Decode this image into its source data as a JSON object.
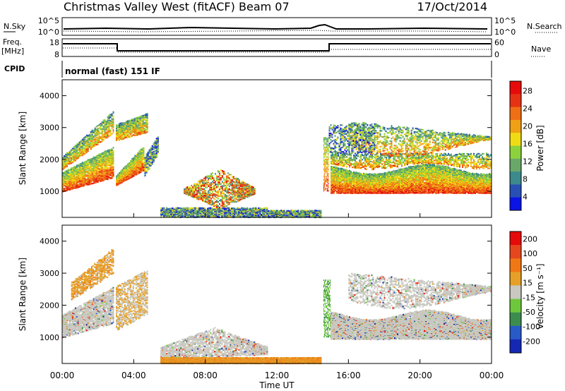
{
  "header": {
    "site_title": "Christmas Valley West (fitACF)",
    "beam": "Beam 07",
    "date": "17/Oct/2014"
  },
  "summary": {
    "nsky_label": "N.Sky",
    "nsky_ticks": [
      "10^5",
      "10^0"
    ],
    "nsearch_label": "N.Search",
    "nsearch_ticks": [
      "10^5",
      "10^0"
    ],
    "freq_label_1": "Freq.",
    "freq_label_2": "[MHz]",
    "freq_ticks": [
      "18",
      "8"
    ],
    "nave_label": "Nave",
    "nave_ticks": [
      "60",
      "0"
    ],
    "cpid_label": "CPID",
    "cpid_value": "normal (fast) 151 IF"
  },
  "chart_data": [
    {
      "type": "heatmap",
      "panel": "power",
      "ylabel": "Slant Range [km]",
      "xlabel": "",
      "yticks": [
        "4000",
        "3000",
        "2000",
        "1000"
      ],
      "ylim": [
        180,
        4500
      ],
      "colorbar_label": "Power [dB]",
      "colorbar_ticks": [
        "28",
        "24",
        "20",
        "16",
        "12",
        "8",
        "4"
      ],
      "colors": [
        "#0a14e6",
        "#2850b4",
        "#3c8a8c",
        "#6aa86a",
        "#8cd23c",
        "#f0dc14",
        "#f0a014",
        "#f06e14",
        "#e63214",
        "#e60a0a"
      ]
    },
    {
      "type": "heatmap",
      "panel": "velocity",
      "ylabel": "Slant Range [km]",
      "xlabel": "Time UT",
      "yticks": [
        "4000",
        "3000",
        "2000",
        "1000"
      ],
      "ylim": [
        180,
        4500
      ],
      "colorbar_label": "Velocity [m s⁻¹]",
      "colorbar_ticks": [
        "200",
        "100",
        "50",
        "15",
        "-15",
        "-50",
        "-100",
        "-200"
      ],
      "colors": [
        "#1428b4",
        "#285ac8",
        "#3c8c50",
        "#6ec83c",
        "#c8c8c0",
        "#e6a028",
        "#f07814",
        "#e6461e",
        "#e60a0a"
      ]
    }
  ],
  "time_axis": {
    "ticks": [
      "00:00",
      "04:00",
      "08:00",
      "12:00",
      "16:00",
      "20:00",
      "00:00"
    ],
    "label": "Time UT"
  }
}
